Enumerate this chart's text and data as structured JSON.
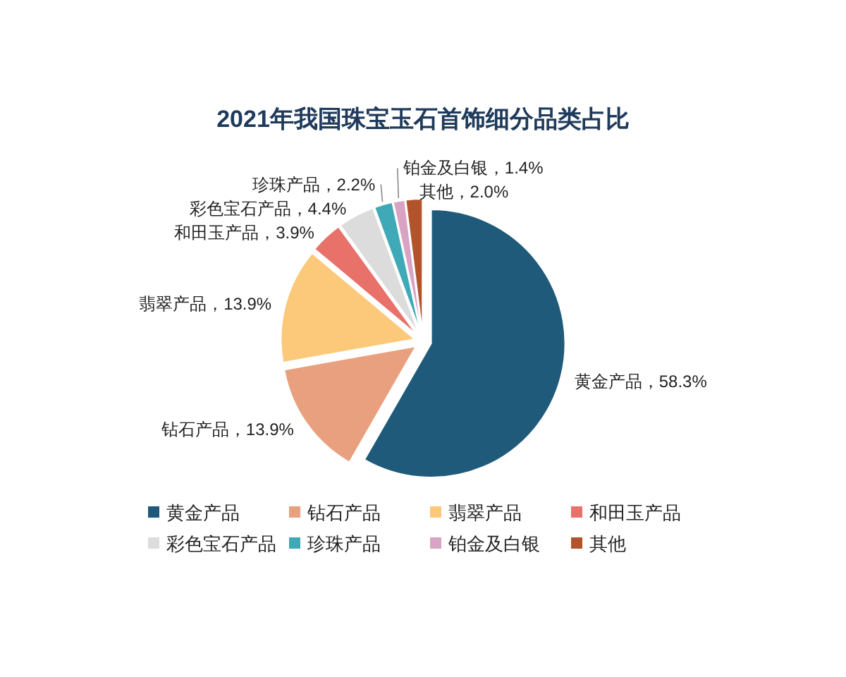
{
  "chart_data": {
    "type": "pie",
    "title": "2021年我国珠宝玉石首饰细分品类占比",
    "categories": [
      "黄金产品",
      "钻石产品",
      "翡翠产品",
      "和田玉产品",
      "彩色宝石产品",
      "珍珠产品",
      "铂金及白银",
      "其他"
    ],
    "values": [
      58.3,
      13.9,
      13.9,
      3.9,
      4.4,
      2.2,
      1.4,
      2.0
    ],
    "colors": [
      "#1f5a7a",
      "#e9a07e",
      "#fcc97b",
      "#e8716a",
      "#dcdcdc",
      "#40a9b8",
      "#d9a3c4",
      "#b2532b"
    ],
    "value_labels": [
      "黄金产品，58.3%",
      "钻石产品，13.9%",
      "翡翠产品，13.9%",
      "和田玉产品，3.9%",
      "彩色宝石产品，4.4%",
      "珍珠产品，2.2%",
      "铂金及白银，1.4%",
      "其他，2.0%"
    ],
    "legend": "bottom"
  }
}
